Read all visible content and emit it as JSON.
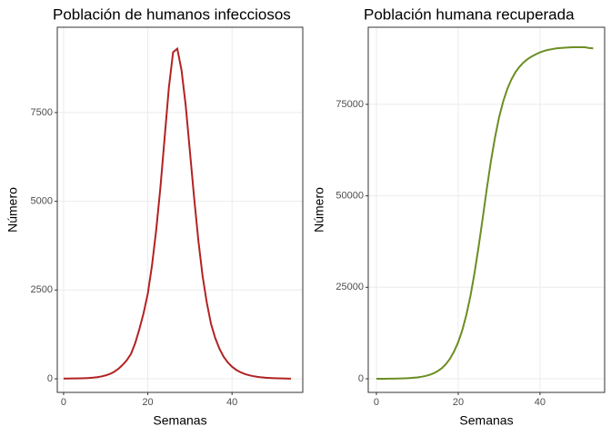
{
  "chart_data": [
    {
      "type": "line",
      "title": "Población de humanos infecciosos",
      "x_label": "Semanas",
      "y_label": "Número",
      "x": [
        0,
        1,
        2,
        3,
        4,
        5,
        6,
        7,
        8,
        9,
        10,
        11,
        12,
        13,
        14,
        15,
        16,
        17,
        18,
        19,
        20,
        21,
        22,
        23,
        24,
        25,
        26,
        27,
        28,
        29,
        30,
        31,
        32,
        33,
        34,
        35,
        36,
        37,
        38,
        39,
        40,
        41,
        42,
        43,
        44,
        45,
        46,
        47,
        48,
        49,
        50,
        51,
        52,
        53,
        54
      ],
      "series": [
        {
          "color": "#b22222",
          "values": [
            5,
            6,
            8,
            10,
            13,
            17,
            23,
            32,
            45,
            65,
            95,
            135,
            195,
            280,
            390,
            520,
            700,
            1000,
            1400,
            1850,
            2400,
            3200,
            4200,
            5400,
            6800,
            8200,
            9200,
            9300,
            8700,
            7700,
            6400,
            5100,
            3900,
            2900,
            2150,
            1550,
            1150,
            850,
            620,
            460,
            340,
            250,
            185,
            135,
            100,
            75,
            55,
            40,
            30,
            22,
            16,
            12,
            9,
            6,
            4
          ]
        }
      ],
      "xlim": [
        -1.5,
        56.8
      ],
      "ylim": [
        -384,
        9903
      ],
      "xticks": [
        0,
        20,
        40
      ],
      "yticks": [
        0,
        2500,
        5000,
        7500
      ],
      "grid": true
    },
    {
      "type": "line",
      "title": "Población humana recuperada",
      "x_label": "Semanas",
      "y_label": "Número",
      "x": [
        0,
        1,
        2,
        3,
        4,
        5,
        6,
        7,
        8,
        9,
        10,
        11,
        12,
        13,
        14,
        15,
        16,
        17,
        18,
        19,
        20,
        21,
        22,
        23,
        24,
        25,
        26,
        27,
        28,
        29,
        30,
        31,
        32,
        33,
        34,
        35,
        36,
        37,
        38,
        39,
        40,
        41,
        42,
        43,
        44,
        45,
        46,
        47,
        48,
        49,
        50,
        51,
        52,
        53
      ],
      "series": [
        {
          "color": "#6b8e23",
          "values": [
            0,
            0,
            10,
            20,
            40,
            60,
            90,
            130,
            190,
            270,
            380,
            540,
            760,
            1070,
            1500,
            2100,
            2900,
            4000,
            5500,
            7500,
            10000,
            13300,
            17500,
            22700,
            29000,
            36200,
            44000,
            52000,
            59500,
            66000,
            71500,
            75800,
            79200,
            81800,
            83800,
            85300,
            86500,
            87400,
            88100,
            88700,
            89200,
            89600,
            89900,
            90100,
            90300,
            90400,
            90500,
            90550,
            90600,
            90600,
            90600,
            90600,
            90400,
            90300
          ]
        }
      ],
      "xlim": [
        -2,
        55.8
      ],
      "ylim": [
        -3724,
        96077
      ],
      "xticks": [
        0,
        20,
        40
      ],
      "yticks": [
        0,
        25000,
        50000,
        75000
      ],
      "grid": true
    }
  ]
}
